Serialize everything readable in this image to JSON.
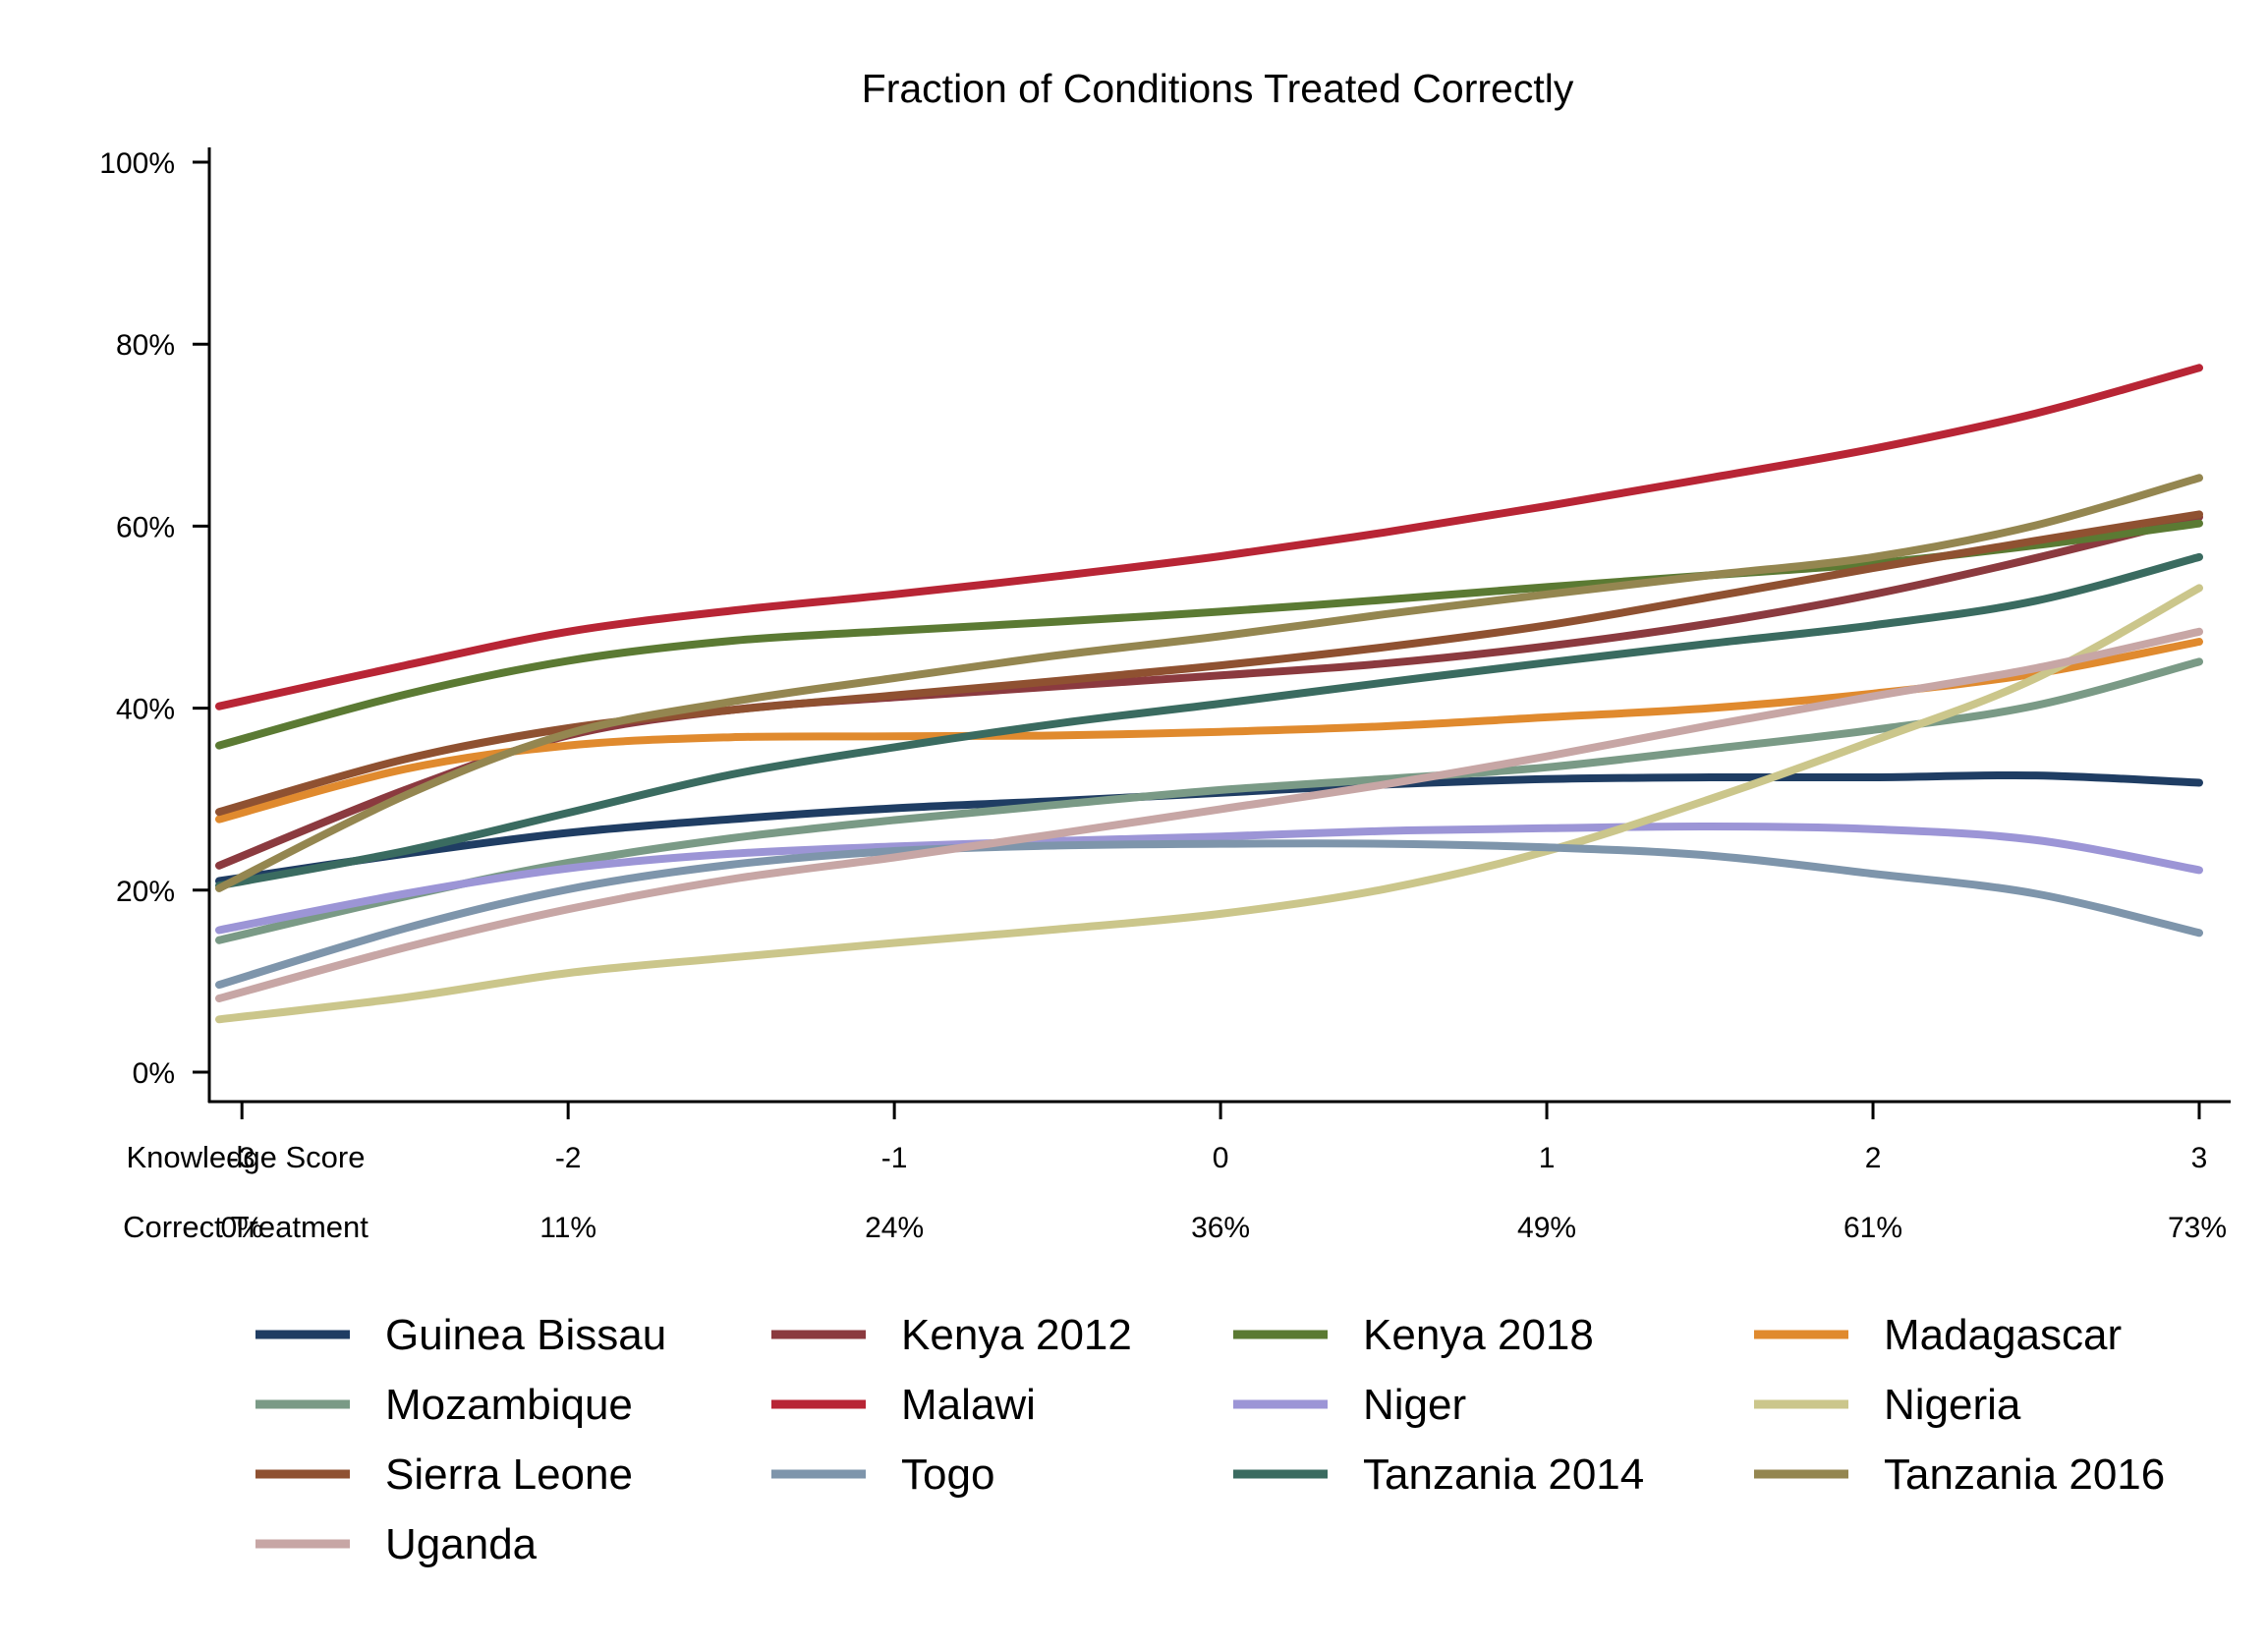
{
  "chart_data": {
    "type": "line",
    "title": "Fraction of Conditions Treated Correctly",
    "xlabel": "",
    "ylabel": "",
    "ylim": [
      0,
      100
    ],
    "xlim": [
      -3.1,
      3
    ],
    "y_ticks": [
      0,
      20,
      40,
      60,
      80,
      100
    ],
    "y_tick_labels": [
      "0%",
      "20%",
      "40%",
      "60%",
      "80%",
      "100%"
    ],
    "x_ticks": [
      -3,
      -2,
      -1,
      0,
      1,
      2,
      3
    ],
    "x_rows": [
      {
        "label": "Knowledge Score",
        "values": [
          "-3",
          "-2",
          "-1",
          "0",
          "1",
          "2",
          "3"
        ]
      },
      {
        "label": "Correct Treatment",
        "values": [
          "0%",
          "11%",
          "24%",
          "36%",
          "49%",
          "61%",
          "73%"
        ]
      }
    ],
    "x": [
      -3.07,
      -2.5,
      -2,
      -1.5,
      -1,
      -0.5,
      0,
      0.5,
      1,
      1.5,
      2,
      2.5,
      3
    ],
    "legend_placement": "bottom",
    "series": [
      {
        "name": "Guinea Bissau",
        "color": "#1f3d63",
        "values": [
          21,
          24,
          26.3,
          27.8,
          29,
          29.8,
          30.7,
          31.6,
          32.2,
          32.4,
          32.4,
          32.6,
          31.8
        ]
      },
      {
        "name": "Kenya 2012",
        "color": "#8b3a3f",
        "values": [
          22.7,
          31,
          37,
          39.8,
          41.2,
          42.4,
          43.6,
          44.9,
          46.8,
          49.3,
          52.5,
          56.5,
          61
        ]
      },
      {
        "name": "Kenya 2018",
        "color": "#5b7a33",
        "values": [
          35.9,
          41.5,
          45.2,
          47.4,
          48.5,
          49.5,
          50.6,
          51.9,
          53.3,
          54.6,
          55.9,
          57.9,
          60.3
        ]
      },
      {
        "name": "Madagascar",
        "color": "#e08a2e",
        "values": [
          27.8,
          33.3,
          35.9,
          36.8,
          36.9,
          37,
          37.4,
          38,
          39,
          40,
          41.6,
          43.8,
          47.3
        ]
      },
      {
        "name": "Mozambique",
        "color": "#7a9a86",
        "values": [
          14.5,
          19.3,
          23,
          25.7,
          27.7,
          29.4,
          31,
          32.2,
          33.5,
          35.5,
          37.6,
          40.3,
          45.1
        ]
      },
      {
        "name": "Malawi",
        "color": "#b82535",
        "values": [
          40.2,
          44.7,
          48.4,
          50.7,
          52.5,
          54.5,
          56.7,
          59.3,
          62.2,
          65.3,
          68.5,
          72.4,
          77.4
        ]
      },
      {
        "name": "Niger",
        "color": "#9c95d6",
        "values": [
          15.6,
          19.6,
          22.4,
          24,
          24.8,
          25.4,
          25.9,
          26.5,
          26.8,
          27,
          26.7,
          25.5,
          22.2
        ]
      },
      {
        "name": "Nigeria",
        "color": "#cbc68b",
        "values": [
          5.8,
          8.2,
          10.9,
          12.6,
          14.2,
          15.7,
          17.4,
          20.1,
          24.3,
          30,
          36.4,
          43.3,
          53.2
        ]
      },
      {
        "name": "Sierra Leone",
        "color": "#8f5131",
        "values": [
          28.6,
          34.4,
          37.8,
          39.8,
          41.4,
          43,
          44.7,
          46.7,
          49.1,
          52.2,
          55.4,
          58.4,
          61.3
        ]
      },
      {
        "name": "Togo",
        "color": "#7e95ab",
        "values": [
          9.6,
          15.8,
          20.1,
          22.8,
          24.3,
          24.9,
          25.1,
          25.1,
          24.7,
          23.8,
          21.8,
          19.6,
          15.3
        ]
      },
      {
        "name": "Tanzania 2014",
        "color": "#3a6b60",
        "values": [
          20.5,
          24.3,
          28.5,
          32.7,
          35.7,
          38.3,
          40.5,
          42.8,
          45,
          47.1,
          49.1,
          51.8,
          56.6
        ]
      },
      {
        "name": "Tanzania 2016",
        "color": "#948650",
        "values": [
          20.2,
          30.4,
          37.2,
          40.7,
          43.3,
          45.8,
          47.9,
          50.3,
          52.5,
          54.6,
          56.6,
          60.1,
          65.3
        ]
      },
      {
        "name": "Uganda",
        "color": "#c7a6a5",
        "values": [
          8.1,
          13.7,
          17.9,
          21.2,
          23.6,
          26.2,
          28.9,
          31.6,
          34.7,
          38.1,
          41.3,
          44.4,
          48.4
        ]
      }
    ]
  }
}
